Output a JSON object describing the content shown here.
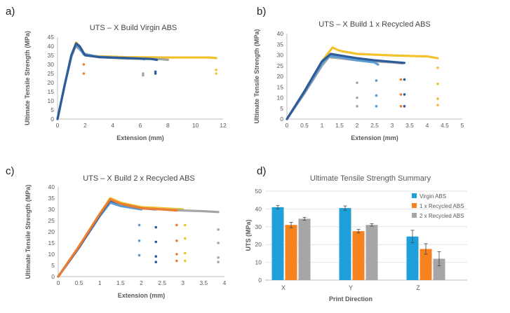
{
  "panel_letters": [
    "a)",
    "b)",
    "c)",
    "d)"
  ],
  "colors": {
    "blue_dark": "#2E5C9A",
    "blue_light": "#5B9BD5",
    "gray": "#A5A5A5",
    "yellow": "#F2C12E",
    "orange": "#ED7D31",
    "bar_blue": "#1FA0DB",
    "bar_orange": "#F5821F",
    "bar_gray": "#A6A6A6"
  },
  "chart_data": [
    {
      "type": "line",
      "title": "UTS – X Build Virgin ABS",
      "xlabel": "Extension (mm)",
      "ylabel": "Ultimate Tensile Strength (MPa)",
      "xlim": [
        0,
        12
      ],
      "ylim": [
        0,
        45
      ],
      "xticks": [
        "0",
        "2",
        "4",
        "6",
        "8",
        "10",
        "12"
      ],
      "yticks": [
        "0",
        "5",
        "10",
        "15",
        "20",
        "25",
        "30",
        "35",
        "40",
        "45"
      ],
      "series": [
        {
          "color": "#F2C12E",
          "x": [
            0,
            0.5,
            1.0,
            1.35,
            1.6,
            2.0,
            3,
            5,
            8,
            11,
            11.5
          ],
          "y": [
            0,
            18,
            35,
            42,
            40,
            35,
            34.5,
            34,
            33.8,
            33.8,
            33.5
          ]
        },
        {
          "color": "#A5A5A5",
          "x": [
            0,
            0.5,
            1.0,
            1.3,
            1.5,
            1.9,
            3,
            5,
            6.8,
            7.6,
            8.0
          ],
          "y": [
            0,
            18,
            34,
            40,
            39,
            36,
            34,
            33.2,
            33,
            32.8,
            32.5
          ]
        },
        {
          "color": "#5B9BD5",
          "x": [
            0,
            0.5,
            1.0,
            1.3,
            1.55,
            1.9,
            3,
            4.5,
            6.0,
            6.3
          ],
          "y": [
            0,
            18,
            35,
            40.5,
            39.5,
            35.5,
            34.2,
            33.6,
            33.2,
            32.8
          ]
        },
        {
          "color": "#2E5C9A",
          "x": [
            0,
            0.5,
            1.0,
            1.35,
            1.6,
            2.0,
            3,
            5,
            6.8,
            7.2
          ],
          "y": [
            0,
            18,
            35,
            41.5,
            40,
            35,
            34,
            33.5,
            33,
            32.5
          ]
        }
      ],
      "points": [
        {
          "color": "#ED7D31",
          "x": 1.9,
          "y": 25
        },
        {
          "color": "#ED7D31",
          "x": 1.9,
          "y": 30
        },
        {
          "color": "#A5A5A5",
          "x": 6.2,
          "y": 24
        },
        {
          "color": "#A5A5A5",
          "x": 6.2,
          "y": 25
        },
        {
          "color": "#2E5C9A",
          "x": 7.1,
          "y": 25
        },
        {
          "color": "#2E5C9A",
          "x": 7.1,
          "y": 26
        },
        {
          "color": "#F2C12E",
          "x": 11.5,
          "y": 25
        },
        {
          "color": "#F2C12E",
          "x": 11.5,
          "y": 27
        }
      ]
    },
    {
      "type": "line",
      "title": "UTS – X Build 1 x Recycled ABS",
      "xlabel": "Extension (mm)",
      "ylabel": "Ultimate Tensile Strength (MPa)",
      "xlim": [
        0,
        5
      ],
      "ylim": [
        0,
        40
      ],
      "xticks": [
        "0",
        "0.5",
        "1",
        "1.5",
        "2",
        "2.5",
        "3",
        "3.5",
        "4",
        "4.5",
        "5"
      ],
      "yticks": [
        "0",
        "5",
        "10",
        "15",
        "20",
        "25",
        "30",
        "35",
        "40"
      ],
      "series": [
        {
          "color": "#F2C12E",
          "x": [
            0,
            0.5,
            1.0,
            1.3,
            1.5,
            2.0,
            3.0,
            4.0,
            4.3
          ],
          "y": [
            0,
            13,
            27,
            33.5,
            32,
            30.5,
            29.8,
            29.3,
            28.5
          ]
        },
        {
          "color": "#A5A5A5",
          "x": [
            0,
            0.5,
            1.0,
            1.2,
            1.5,
            2.0,
            2.5,
            3.0,
            3.3
          ],
          "y": [
            0,
            12,
            25,
            29,
            28.5,
            27.5,
            27,
            26.5,
            26
          ]
        },
        {
          "color": "#5B9BD5",
          "x": [
            0,
            0.5,
            1.0,
            1.2,
            1.5,
            2.0,
            2.5,
            2.6
          ],
          "y": [
            0,
            12.5,
            26,
            29.5,
            29,
            27.5,
            26.5,
            25.5
          ]
        },
        {
          "color": "#2E5C9A",
          "x": [
            0,
            0.5,
            1.0,
            1.25,
            1.5,
            2.0,
            2.5,
            3.0,
            3.35
          ],
          "y": [
            0,
            13,
            27,
            30.5,
            29.8,
            28.5,
            27.5,
            26.8,
            26.3
          ]
        }
      ],
      "points": [
        {
          "color": "#A5A5A5",
          "x": 2.0,
          "y": 6
        },
        {
          "color": "#A5A5A5",
          "x": 2.0,
          "y": 10
        },
        {
          "color": "#A5A5A5",
          "x": 2.0,
          "y": 17
        },
        {
          "color": "#5B9BD5",
          "x": 2.55,
          "y": 6
        },
        {
          "color": "#5B9BD5",
          "x": 2.55,
          "y": 11
        },
        {
          "color": "#5B9BD5",
          "x": 2.55,
          "y": 18
        },
        {
          "color": "#ED7D31",
          "x": 3.25,
          "y": 6
        },
        {
          "color": "#ED7D31",
          "x": 3.25,
          "y": 11.5
        },
        {
          "color": "#ED7D31",
          "x": 3.25,
          "y": 18.5
        },
        {
          "color": "#2E5C9A",
          "x": 3.35,
          "y": 6
        },
        {
          "color": "#2E5C9A",
          "x": 3.35,
          "y": 11.5
        },
        {
          "color": "#2E5C9A",
          "x": 3.35,
          "y": 18.5
        },
        {
          "color": "#F2C12E",
          "x": 4.3,
          "y": 6.5
        },
        {
          "color": "#F2C12E",
          "x": 4.3,
          "y": 9.5
        },
        {
          "color": "#F2C12E",
          "x": 4.3,
          "y": 16.5
        },
        {
          "color": "#F2C12E",
          "x": 4.3,
          "y": 24
        }
      ]
    },
    {
      "type": "line",
      "title": "UTS – X Build 2 x Recycled ABS",
      "xlabel": "Extension (mm)",
      "ylabel": "Ultimate Tensile Strength (MPa)",
      "xlim": [
        0,
        4
      ],
      "ylim": [
        0,
        40
      ],
      "xticks": [
        "0",
        "0.5",
        "1",
        "1.5",
        "2",
        "2.5",
        "3",
        "3.5",
        "4"
      ],
      "yticks": [
        "0",
        "5",
        "10",
        "15",
        "20",
        "25",
        "30",
        "35",
        "40"
      ],
      "series": [
        {
          "color": "#F2C12E",
          "x": [
            0,
            0.5,
            1.0,
            1.25,
            1.5,
            2.0,
            2.5,
            3.0
          ],
          "y": [
            0,
            13.5,
            28,
            35,
            33,
            31,
            30.5,
            30
          ]
        },
        {
          "color": "#A5A5A5",
          "x": [
            0,
            0.5,
            1.0,
            1.25,
            1.5,
            2.0,
            2.5,
            3.0,
            3.5,
            3.85
          ],
          "y": [
            0,
            13,
            27,
            33.5,
            32,
            30.5,
            30,
            29.5,
            29.2,
            28.8
          ]
        },
        {
          "color": "#5B9BD5",
          "x": [
            0,
            0.5,
            1.0,
            1.25,
            1.5,
            2.0
          ],
          "y": [
            0,
            13,
            27,
            33,
            31.5,
            30
          ]
        },
        {
          "color": "#2E5C9A",
          "x": [
            0,
            0.5,
            1.0,
            1.25,
            1.5,
            2.0,
            2.35
          ],
          "y": [
            0,
            13,
            27.5,
            34,
            32.5,
            30.5,
            30
          ]
        },
        {
          "color": "#ED7D31",
          "x": [
            0,
            0.5,
            1.0,
            1.25,
            1.5,
            2.0,
            2.5,
            2.85
          ],
          "y": [
            0,
            13.5,
            28,
            34.5,
            32.5,
            30.5,
            30,
            29.5
          ]
        }
      ],
      "points": [
        {
          "color": "#5B9BD5",
          "x": 1.95,
          "y": 9.5
        },
        {
          "color": "#5B9BD5",
          "x": 1.95,
          "y": 16
        },
        {
          "color": "#5B9BD5",
          "x": 1.95,
          "y": 23
        },
        {
          "color": "#2E5C9A",
          "x": 2.35,
          "y": 6.5
        },
        {
          "color": "#2E5C9A",
          "x": 2.35,
          "y": 9
        },
        {
          "color": "#2E5C9A",
          "x": 2.35,
          "y": 15.5
        },
        {
          "color": "#2E5C9A",
          "x": 2.35,
          "y": 22
        },
        {
          "color": "#ED7D31",
          "x": 2.85,
          "y": 7
        },
        {
          "color": "#ED7D31",
          "x": 2.85,
          "y": 10
        },
        {
          "color": "#ED7D31",
          "x": 2.85,
          "y": 16
        },
        {
          "color": "#ED7D31",
          "x": 2.85,
          "y": 23
        },
        {
          "color": "#F2C12E",
          "x": 3.05,
          "y": 7
        },
        {
          "color": "#F2C12E",
          "x": 3.05,
          "y": 10.5
        },
        {
          "color": "#F2C12E",
          "x": 3.05,
          "y": 17
        },
        {
          "color": "#F2C12E",
          "x": 3.05,
          "y": 23
        },
        {
          "color": "#A5A5A5",
          "x": 3.85,
          "y": 6.5
        },
        {
          "color": "#A5A5A5",
          "x": 3.85,
          "y": 8.5
        },
        {
          "color": "#A5A5A5",
          "x": 3.85,
          "y": 15
        },
        {
          "color": "#A5A5A5",
          "x": 3.85,
          "y": 21
        }
      ]
    },
    {
      "type": "bar",
      "title": "Ultimate Tensile Strength Summary",
      "xlabel": "Print Direction",
      "ylabel": "UTS (MPa)",
      "ylim": [
        0,
        50
      ],
      "yticks": [
        "0",
        "10",
        "20",
        "30",
        "40",
        "50"
      ],
      "categories": [
        "X",
        "Y",
        "Z"
      ],
      "grid": true,
      "legend": "right",
      "series": [
        {
          "name": "Virgin ABS",
          "color": "#1FA0DB",
          "values": [
            41,
            40.5,
            24.5
          ],
          "errors": [
            1,
            1.2,
            3.5
          ]
        },
        {
          "name": "1 x Recycled ABS",
          "color": "#F5821F",
          "values": [
            31,
            27.5,
            17.5
          ],
          "errors": [
            1.5,
            1,
            3
          ]
        },
        {
          "name": "2 x Recycled ABS",
          "color": "#A6A6A6",
          "values": [
            34.5,
            31,
            12
          ],
          "errors": [
            0.8,
            0.7,
            4
          ]
        }
      ]
    }
  ]
}
